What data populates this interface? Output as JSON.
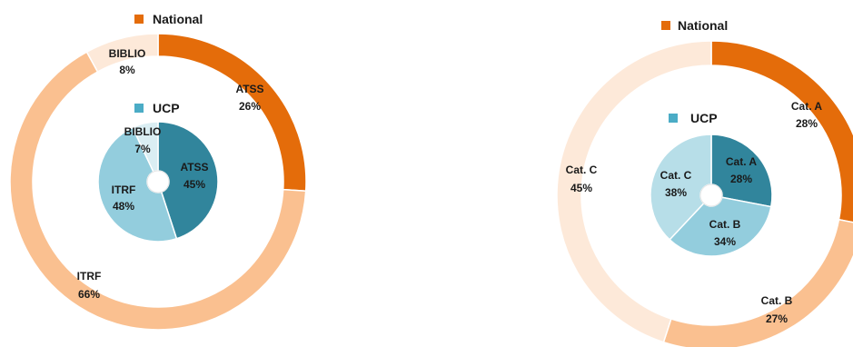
{
  "chart_data": [
    {
      "type": "pie",
      "legend": [
        "National",
        "UCP"
      ],
      "series": [
        {
          "name": "National",
          "categories": [
            "ATSS",
            "ITRF",
            "BIBLIO"
          ],
          "values": [
            26,
            66,
            8
          ],
          "labels": [
            "26%",
            "66%",
            "8%"
          ],
          "colors": [
            "#E46C0A",
            "#FAC090",
            "#FDE9D9"
          ]
        },
        {
          "name": "UCP",
          "categories": [
            "ATSS",
            "ITRF",
            "BIBLIO"
          ],
          "values": [
            45,
            48,
            7
          ],
          "labels": [
            "45%",
            "48%",
            "7%"
          ],
          "colors": [
            "#31859C",
            "#93CDDD",
            "#DAEEF3"
          ]
        }
      ]
    },
    {
      "type": "pie",
      "legend": [
        "National",
        "UCP"
      ],
      "series": [
        {
          "name": "National",
          "categories": [
            "Cat. A",
            "Cat. B",
            "Cat. C"
          ],
          "values": [
            28,
            27,
            45
          ],
          "labels": [
            "28%",
            "27%",
            "45%"
          ],
          "colors": [
            "#E46C0A",
            "#FAC090",
            "#FDE9D9"
          ]
        },
        {
          "name": "UCP",
          "categories": [
            "Cat. A",
            "Cat. B",
            "Cat. C"
          ],
          "values": [
            28,
            34,
            38
          ],
          "labels": [
            "28%",
            "34%",
            "38%"
          ],
          "colors": [
            "#31859C",
            "#93CDDD",
            "#B7DEE8"
          ]
        }
      ]
    }
  ],
  "colors": {
    "legend_national": "#E46C0A",
    "legend_ucp": "#4BACC6"
  }
}
